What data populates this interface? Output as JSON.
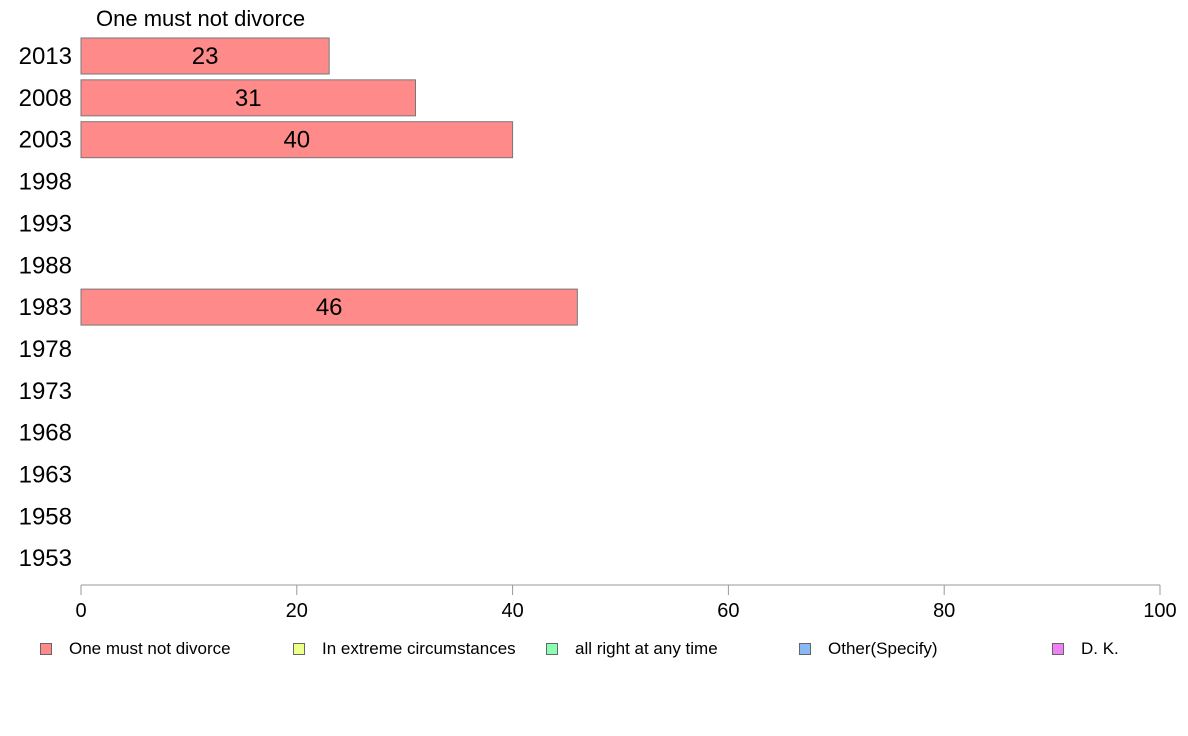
{
  "chart_data": {
    "type": "bar",
    "orientation": "horizontal",
    "title": "One must not divorce",
    "categories": [
      "2013",
      "2008",
      "2003",
      "1998",
      "1993",
      "1988",
      "1983",
      "1978",
      "1973",
      "1968",
      "1963",
      "1958",
      "1953"
    ],
    "series": [
      {
        "name": "One must not divorce",
        "color": "#FF8A8A",
        "values": [
          23,
          31,
          40,
          null,
          null,
          null,
          46,
          null,
          null,
          null,
          null,
          null,
          null
        ]
      }
    ],
    "xlim": [
      0,
      100
    ],
    "xticks": [
      "0",
      "20",
      "40",
      "60",
      "80",
      "100"
    ],
    "grid": false,
    "legend_position": "bottom",
    "legend": [
      {
        "label": "One must not divorce",
        "color": "#FF8A8A"
      },
      {
        "label": "In extreme circumstances",
        "color": "#EEFF8A"
      },
      {
        "label": "all right at any time",
        "color": "#8AFFB4"
      },
      {
        "label": "Other(Specify)",
        "color": "#8AB8F5"
      },
      {
        "label": "D. K.",
        "color": "#F080F5"
      }
    ]
  }
}
